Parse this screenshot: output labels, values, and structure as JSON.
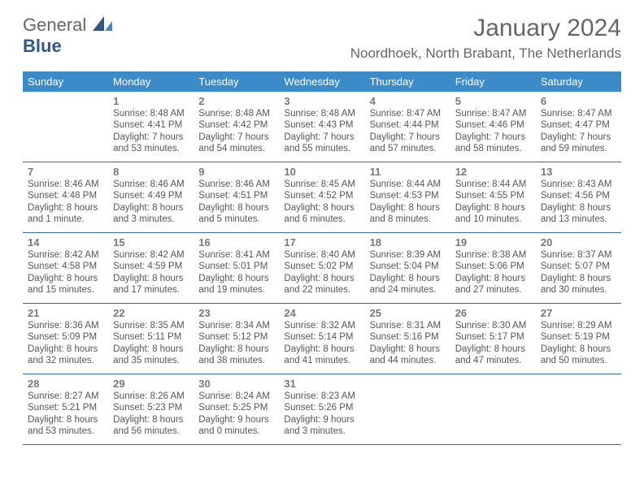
{
  "logo": {
    "text_general": "General",
    "text_blue": "Blue"
  },
  "title": "January 2024",
  "location": "Noordhoek, North Brabant, The Netherlands",
  "colors": {
    "header_bg": "#3b8bc9",
    "header_text": "#ffffff",
    "border": "#3b6a94",
    "body_text": "#555555",
    "daynum": "#777777"
  },
  "day_names": [
    "Sunday",
    "Monday",
    "Tuesday",
    "Wednesday",
    "Thursday",
    "Friday",
    "Saturday"
  ],
  "weeks": [
    [
      {
        "num": "",
        "sunrise": "",
        "sunset": "",
        "daylight": ""
      },
      {
        "num": "1",
        "sunrise": "Sunrise: 8:48 AM",
        "sunset": "Sunset: 4:41 PM",
        "daylight": "Daylight: 7 hours and 53 minutes."
      },
      {
        "num": "2",
        "sunrise": "Sunrise: 8:48 AM",
        "sunset": "Sunset: 4:42 PM",
        "daylight": "Daylight: 7 hours and 54 minutes."
      },
      {
        "num": "3",
        "sunrise": "Sunrise: 8:48 AM",
        "sunset": "Sunset: 4:43 PM",
        "daylight": "Daylight: 7 hours and 55 minutes."
      },
      {
        "num": "4",
        "sunrise": "Sunrise: 8:47 AM",
        "sunset": "Sunset: 4:44 PM",
        "daylight": "Daylight: 7 hours and 57 minutes."
      },
      {
        "num": "5",
        "sunrise": "Sunrise: 8:47 AM",
        "sunset": "Sunset: 4:46 PM",
        "daylight": "Daylight: 7 hours and 58 minutes."
      },
      {
        "num": "6",
        "sunrise": "Sunrise: 8:47 AM",
        "sunset": "Sunset: 4:47 PM",
        "daylight": "Daylight: 7 hours and 59 minutes."
      }
    ],
    [
      {
        "num": "7",
        "sunrise": "Sunrise: 8:46 AM",
        "sunset": "Sunset: 4:48 PM",
        "daylight": "Daylight: 8 hours and 1 minute."
      },
      {
        "num": "8",
        "sunrise": "Sunrise: 8:46 AM",
        "sunset": "Sunset: 4:49 PM",
        "daylight": "Daylight: 8 hours and 3 minutes."
      },
      {
        "num": "9",
        "sunrise": "Sunrise: 8:46 AM",
        "sunset": "Sunset: 4:51 PM",
        "daylight": "Daylight: 8 hours and 5 minutes."
      },
      {
        "num": "10",
        "sunrise": "Sunrise: 8:45 AM",
        "sunset": "Sunset: 4:52 PM",
        "daylight": "Daylight: 8 hours and 6 minutes."
      },
      {
        "num": "11",
        "sunrise": "Sunrise: 8:44 AM",
        "sunset": "Sunset: 4:53 PM",
        "daylight": "Daylight: 8 hours and 8 minutes."
      },
      {
        "num": "12",
        "sunrise": "Sunrise: 8:44 AM",
        "sunset": "Sunset: 4:55 PM",
        "daylight": "Daylight: 8 hours and 10 minutes."
      },
      {
        "num": "13",
        "sunrise": "Sunrise: 8:43 AM",
        "sunset": "Sunset: 4:56 PM",
        "daylight": "Daylight: 8 hours and 13 minutes."
      }
    ],
    [
      {
        "num": "14",
        "sunrise": "Sunrise: 8:42 AM",
        "sunset": "Sunset: 4:58 PM",
        "daylight": "Daylight: 8 hours and 15 minutes."
      },
      {
        "num": "15",
        "sunrise": "Sunrise: 8:42 AM",
        "sunset": "Sunset: 4:59 PM",
        "daylight": "Daylight: 8 hours and 17 minutes."
      },
      {
        "num": "16",
        "sunrise": "Sunrise: 8:41 AM",
        "sunset": "Sunset: 5:01 PM",
        "daylight": "Daylight: 8 hours and 19 minutes."
      },
      {
        "num": "17",
        "sunrise": "Sunrise: 8:40 AM",
        "sunset": "Sunset: 5:02 PM",
        "daylight": "Daylight: 8 hours and 22 minutes."
      },
      {
        "num": "18",
        "sunrise": "Sunrise: 8:39 AM",
        "sunset": "Sunset: 5:04 PM",
        "daylight": "Daylight: 8 hours and 24 minutes."
      },
      {
        "num": "19",
        "sunrise": "Sunrise: 8:38 AM",
        "sunset": "Sunset: 5:06 PM",
        "daylight": "Daylight: 8 hours and 27 minutes."
      },
      {
        "num": "20",
        "sunrise": "Sunrise: 8:37 AM",
        "sunset": "Sunset: 5:07 PM",
        "daylight": "Daylight: 8 hours and 30 minutes."
      }
    ],
    [
      {
        "num": "21",
        "sunrise": "Sunrise: 8:36 AM",
        "sunset": "Sunset: 5:09 PM",
        "daylight": "Daylight: 8 hours and 32 minutes."
      },
      {
        "num": "22",
        "sunrise": "Sunrise: 8:35 AM",
        "sunset": "Sunset: 5:11 PM",
        "daylight": "Daylight: 8 hours and 35 minutes."
      },
      {
        "num": "23",
        "sunrise": "Sunrise: 8:34 AM",
        "sunset": "Sunset: 5:12 PM",
        "daylight": "Daylight: 8 hours and 38 minutes."
      },
      {
        "num": "24",
        "sunrise": "Sunrise: 8:32 AM",
        "sunset": "Sunset: 5:14 PM",
        "daylight": "Daylight: 8 hours and 41 minutes."
      },
      {
        "num": "25",
        "sunrise": "Sunrise: 8:31 AM",
        "sunset": "Sunset: 5:16 PM",
        "daylight": "Daylight: 8 hours and 44 minutes."
      },
      {
        "num": "26",
        "sunrise": "Sunrise: 8:30 AM",
        "sunset": "Sunset: 5:17 PM",
        "daylight": "Daylight: 8 hours and 47 minutes."
      },
      {
        "num": "27",
        "sunrise": "Sunrise: 8:29 AM",
        "sunset": "Sunset: 5:19 PM",
        "daylight": "Daylight: 8 hours and 50 minutes."
      }
    ],
    [
      {
        "num": "28",
        "sunrise": "Sunrise: 8:27 AM",
        "sunset": "Sunset: 5:21 PM",
        "daylight": "Daylight: 8 hours and 53 minutes."
      },
      {
        "num": "29",
        "sunrise": "Sunrise: 8:26 AM",
        "sunset": "Sunset: 5:23 PM",
        "daylight": "Daylight: 8 hours and 56 minutes."
      },
      {
        "num": "30",
        "sunrise": "Sunrise: 8:24 AM",
        "sunset": "Sunset: 5:25 PM",
        "daylight": "Daylight: 9 hours and 0 minutes."
      },
      {
        "num": "31",
        "sunrise": "Sunrise: 8:23 AM",
        "sunset": "Sunset: 5:26 PM",
        "daylight": "Daylight: 9 hours and 3 minutes."
      },
      {
        "num": "",
        "sunrise": "",
        "sunset": "",
        "daylight": ""
      },
      {
        "num": "",
        "sunrise": "",
        "sunset": "",
        "daylight": ""
      },
      {
        "num": "",
        "sunrise": "",
        "sunset": "",
        "daylight": ""
      }
    ]
  ]
}
